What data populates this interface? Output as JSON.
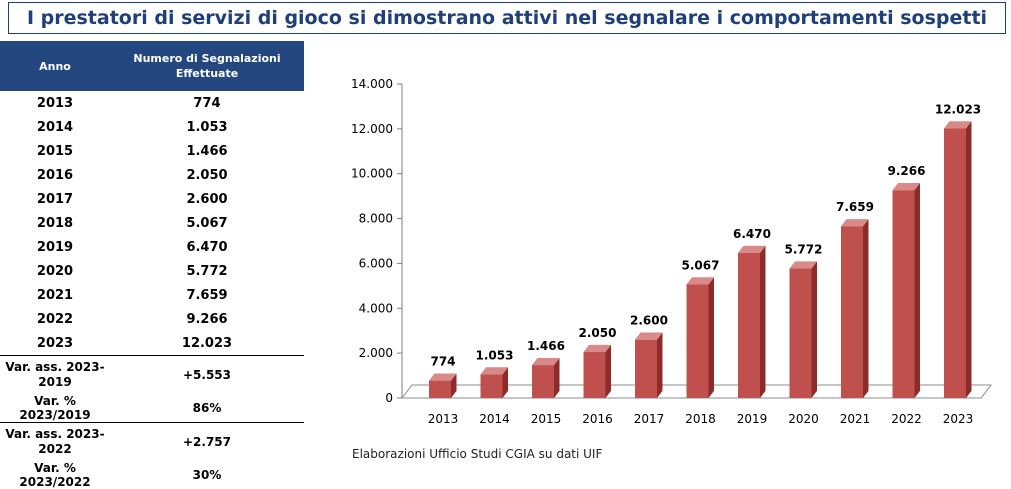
{
  "title": "I prestatori di servizi di gioco si dimostrano attivi nel segnalare i comportamenti sospetti",
  "table": {
    "header": {
      "col1": "Anno",
      "col2": "Numero di Segnalazioni Effettuate"
    },
    "rows": [
      {
        "year": "2013",
        "value": "774"
      },
      {
        "year": "2014",
        "value": "1.053"
      },
      {
        "year": "2015",
        "value": "1.466"
      },
      {
        "year": "2016",
        "value": "2.050"
      },
      {
        "year": "2017",
        "value": "2.600"
      },
      {
        "year": "2018",
        "value": "5.067"
      },
      {
        "year": "2019",
        "value": "6.470"
      },
      {
        "year": "2020",
        "value": "5.772"
      },
      {
        "year": "2021",
        "value": "7.659"
      },
      {
        "year": "2022",
        "value": "9.266"
      },
      {
        "year": "2023",
        "value": "12.023"
      }
    ],
    "summary": [
      {
        "label": "Var. ass. 2023-2019",
        "value": "+5.553"
      },
      {
        "label": "Var. % 2023/2019",
        "value": "86%"
      },
      {
        "label": "Var. ass. 2023-2022",
        "value": "+2.757"
      },
      {
        "label": "Var. % 2023/2022",
        "value": "30%"
      }
    ]
  },
  "chart_data": {
    "type": "bar",
    "categories": [
      "2013",
      "2014",
      "2015",
      "2016",
      "2017",
      "2018",
      "2019",
      "2020",
      "2021",
      "2022",
      "2023"
    ],
    "values": [
      774,
      1053,
      1466,
      2050,
      2600,
      5067,
      6470,
      5772,
      7659,
      9266,
      12023
    ],
    "data_labels": [
      "774",
      "1.053",
      "1.466",
      "2.050",
      "2.600",
      "5.067",
      "6.470",
      "5.772",
      "7.659",
      "9.266",
      "12.023"
    ],
    "ylim": [
      0,
      14000
    ],
    "y_ticks": [
      0,
      2000,
      4000,
      6000,
      8000,
      10000,
      12000,
      14000
    ],
    "y_tick_labels": [
      "0",
      "2.000",
      "4.000",
      "6.000",
      "8.000",
      "10.000",
      "12.000",
      "14.000"
    ],
    "bar_color": "#c0504d",
    "grid": false,
    "three_d": true
  },
  "source_note": "Elaborazioni Ufficio Studi CGIA su dati UIF"
}
